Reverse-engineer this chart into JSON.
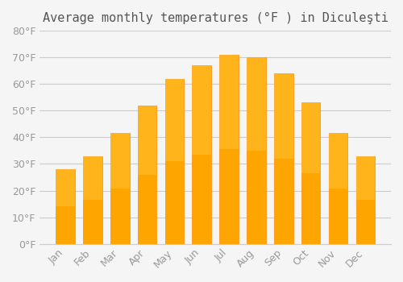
{
  "title": "Average monthly temperatures (°F ) in Diculeşti",
  "months": [
    "Jan",
    "Feb",
    "Mar",
    "Apr",
    "May",
    "Jun",
    "Jul",
    "Aug",
    "Sep",
    "Oct",
    "Nov",
    "Dec"
  ],
  "values": [
    28.0,
    33.0,
    41.5,
    52.0,
    62.0,
    67.0,
    71.0,
    70.0,
    64.0,
    53.0,
    41.5,
    33.0
  ],
  "bar_color": "#FFA500",
  "bar_edge_color": "#FF8C00",
  "background_color": "#F5F5F5",
  "grid_color": "#CCCCCC",
  "ylim": [
    0,
    80
  ],
  "yticks": [
    0,
    10,
    20,
    30,
    40,
    50,
    60,
    70,
    80
  ],
  "title_fontsize": 11,
  "tick_fontsize": 9
}
